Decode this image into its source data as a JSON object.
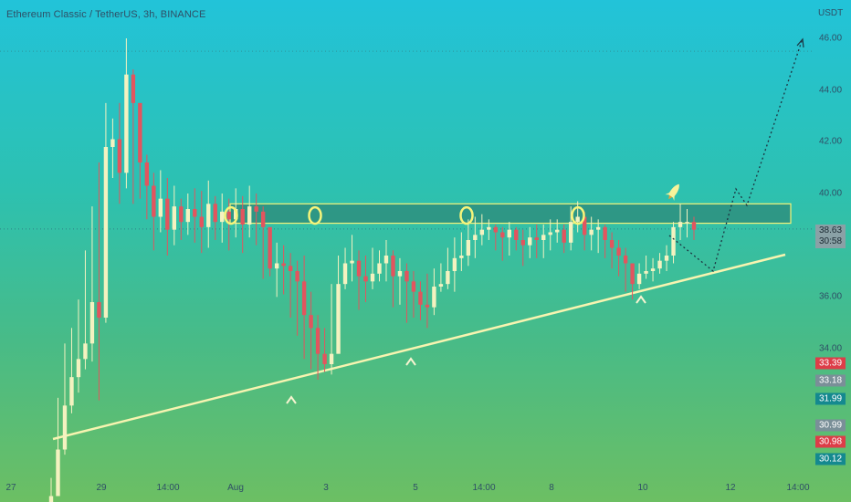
{
  "header": {
    "title": "Ethereum Classic / TetherUS, 3h, BINANCE",
    "unit": "USDT"
  },
  "chart_data": {
    "type": "candlestick",
    "title": "Ethereum Classic / TetherUS, 3h, BINANCE",
    "ylabel": "USDT",
    "ylim": [
      33.5,
      46.5
    ],
    "grid": false,
    "y_ticks": [
      "46.00",
      "44.00",
      "42.00",
      "40.00",
      "36.00",
      "34.00"
    ],
    "x_ticks": [
      "27",
      "29",
      "14:00",
      "Aug",
      "3",
      "5",
      "14:00",
      "8",
      "10",
      "12",
      "14:00"
    ],
    "price_badges": [
      {
        "label": "38.63",
        "sub": "30:58",
        "value": 38.63,
        "color": "price"
      },
      {
        "label": "33.39",
        "value": 33.39,
        "color": "red"
      },
      {
        "label": "33.18",
        "value": 33.18,
        "color": "gray"
      },
      {
        "label": "31.99",
        "value": 31.99,
        "color": "teal"
      },
      {
        "label": "30.99",
        "value": 30.99,
        "color": "gray"
      },
      {
        "label": "30.98",
        "value": 30.98,
        "color": "red"
      },
      {
        "label": "30.12",
        "value": 30.12,
        "color": "teal"
      }
    ],
    "horizontal_levels": [
      45.5,
      38.63
    ],
    "resistance_zone": [
      38.85,
      39.6
    ],
    "series": [
      {
        "close": [
          28.3,
          30.1,
          31.8,
          32.9,
          33.6,
          34.2,
          35.8,
          35.2,
          41.8,
          42.1,
          40.8,
          44.6,
          43.5,
          41.2,
          40.3,
          39.1,
          39.8,
          38.6,
          39.5,
          38.9,
          39.4,
          39.1,
          38.7,
          39.6,
          38.9,
          39.3,
          39.0,
          39.4,
          38.8,
          39.5,
          39.3,
          38.7,
          37.1,
          37.3,
          37.2,
          37.0,
          36.6,
          35.3,
          34.8,
          33.8,
          33.4,
          33.8,
          36.5,
          37.3,
          37.4,
          36.8,
          36.6,
          36.9,
          37.3,
          37.6,
          36.8,
          37.0,
          36.6,
          36.2,
          35.7,
          35.6,
          36.4,
          36.5,
          37.0,
          37.5,
          37.6,
          38.2,
          38.4,
          38.6,
          38.7,
          38.5,
          38.3,
          38.6,
          38.2,
          38.0,
          38.3,
          38.2,
          38.4,
          38.5,
          38.6,
          38.1,
          38.9,
          39.1,
          38.4,
          38.6,
          38.7,
          38.2,
          37.9,
          37.6,
          37.3,
          36.5,
          36.9,
          37.0,
          37.1,
          37.4,
          37.6,
          38.7,
          38.9,
          38.9,
          38.6
        ],
        "low": [
          27.8,
          28.5,
          29.9,
          31.5,
          32.3,
          33.2,
          33.5,
          32.0,
          35.0,
          40.6,
          39.6,
          40.2,
          39.6,
          39.8,
          39.0,
          37.8,
          38.5,
          37.6,
          38.0,
          38.2,
          38.4,
          38.1,
          37.7,
          37.9,
          38.2,
          38.1,
          37.8,
          38.3,
          37.7,
          38.3,
          38.0,
          36.7,
          36.8,
          36.0,
          36.1,
          35.2,
          34.5,
          33.6,
          33.2,
          32.8,
          33.1,
          33.0,
          35.9,
          36.3,
          36.6,
          35.5,
          35.8,
          36.3,
          36.6,
          36.6,
          35.6,
          35.7,
          35.0,
          35.2,
          35.1,
          34.8,
          35.3,
          36.2,
          36.3,
          36.2,
          37.0,
          37.2,
          37.5,
          38.0,
          38.2,
          37.8,
          37.4,
          37.6,
          37.8,
          37.2,
          37.5,
          37.5,
          37.5,
          37.8,
          38.1,
          37.7,
          37.8,
          38.5,
          37.8,
          37.8,
          37.7,
          37.5,
          37.1,
          36.8,
          36.2,
          35.9,
          36.3,
          36.7,
          36.6,
          36.9,
          37.0,
          37.3,
          38.2,
          38.3,
          38.2
        ],
        "high": [
          29.0,
          32.1,
          34.2,
          34.8,
          35.9,
          37.8,
          39.5,
          41.2,
          43.5,
          42.9,
          43.5,
          46.0,
          44.8,
          42.4,
          41.5,
          40.8,
          40.9,
          40.6,
          40.3,
          39.8,
          40.0,
          40.2,
          40.1,
          40.5,
          39.9,
          40.0,
          39.8,
          40.2,
          39.9,
          40.3,
          40.0,
          39.5,
          38.3,
          38.1,
          38.0,
          37.7,
          37.4,
          37.6,
          36.2,
          35.3,
          34.8,
          36.5,
          37.6,
          37.9,
          38.4,
          37.8,
          37.6,
          37.9,
          37.8,
          38.2,
          37.8,
          37.5,
          37.3,
          37.0,
          36.6,
          36.9,
          37.1,
          37.3,
          37.9,
          38.3,
          38.5,
          39.0,
          39.1,
          39.2,
          39.0,
          38.8,
          38.7,
          38.9,
          38.7,
          38.6,
          38.7,
          38.8,
          38.8,
          39.0,
          39.0,
          38.8,
          39.5,
          39.7,
          39.3,
          39.1,
          39.0,
          38.8,
          38.5,
          38.2,
          37.9,
          37.3,
          37.3,
          37.6,
          37.5,
          37.7,
          38.0,
          38.9,
          39.6,
          39.4,
          39.1
        ]
      }
    ],
    "open_first": 28.0,
    "markers": {
      "circles": [
        39.15,
        39.15,
        39.15,
        39.15
      ],
      "carets": [
        34.6,
        34.6,
        36.7
      ],
      "flag": "rocket"
    }
  }
}
